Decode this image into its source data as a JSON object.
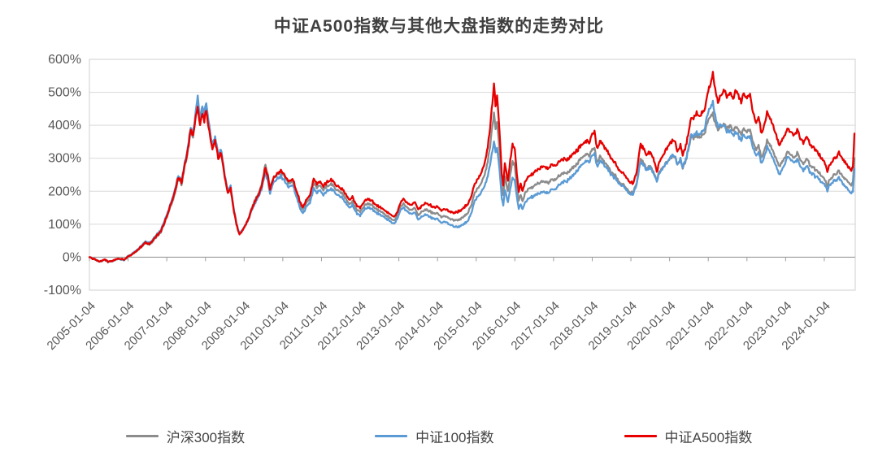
{
  "title": "中证A500指数与其他大盘指数的走势对比",
  "chart_data": {
    "type": "line",
    "title": "中证A500指数与其他大盘指数的走势对比",
    "xlabel": "",
    "ylabel": "",
    "unit": "%",
    "grid": true,
    "legend_position": "bottom",
    "y_axis": {
      "tick_labels": [
        "600%",
        "500%",
        "400%",
        "300%",
        "200%",
        "100%",
        "0%",
        "-100%"
      ],
      "tick_values": [
        600,
        500,
        400,
        300,
        200,
        100,
        0,
        -100
      ],
      "min": -100,
      "max": 600,
      "axis_cross_value": 0
    },
    "x_axis": {
      "tick_labels": [
        "2005-01-04",
        "2006-01-04",
        "2007-01-04",
        "2008-01-04",
        "2009-01-04",
        "2010-01-04",
        "2011-01-04",
        "2012-01-04",
        "2013-01-04",
        "2014-01-04",
        "2015-01-04",
        "2016-01-04",
        "2017-01-04",
        "2018-01-04",
        "2019-01-04",
        "2020-01-04",
        "2021-01-04",
        "2022-01-04",
        "2023-01-04",
        "2024-01-04"
      ],
      "tick_positions": [
        2005,
        2006,
        2007,
        2008,
        2009,
        2010,
        2011,
        2012,
        2013,
        2014,
        2015,
        2016,
        2017,
        2018,
        2019,
        2020,
        2021,
        2022,
        2023,
        2024
      ],
      "range": [
        2005.0,
        2024.8
      ]
    },
    "x": [
      2005.0,
      2005.1,
      2005.25,
      2005.4,
      2005.5,
      2005.6,
      2005.75,
      2005.9,
      2006.0,
      2006.15,
      2006.3,
      2006.45,
      2006.55,
      2006.7,
      2006.85,
      2006.95,
      2007.05,
      2007.15,
      2007.22,
      2007.3,
      2007.38,
      2007.45,
      2007.55,
      2007.62,
      2007.68,
      2007.75,
      2007.8,
      2007.86,
      2007.92,
      2007.97,
      2008.02,
      2008.1,
      2008.18,
      2008.25,
      2008.33,
      2008.4,
      2008.5,
      2008.58,
      2008.65,
      2008.72,
      2008.8,
      2008.88,
      2008.95,
      2009.05,
      2009.15,
      2009.25,
      2009.35,
      2009.45,
      2009.55,
      2009.62,
      2009.67,
      2009.75,
      2009.85,
      2009.95,
      2010.05,
      2010.15,
      2010.25,
      2010.35,
      2010.45,
      2010.52,
      2010.6,
      2010.7,
      2010.8,
      2010.88,
      2010.95,
      2011.05,
      2011.15,
      2011.25,
      2011.35,
      2011.45,
      2011.55,
      2011.65,
      2011.72,
      2011.8,
      2011.9,
      2012.0,
      2012.1,
      2012.2,
      2012.3,
      2012.4,
      2012.5,
      2012.6,
      2012.7,
      2012.8,
      2012.9,
      2012.97,
      2013.05,
      2013.12,
      2013.2,
      2013.3,
      2013.4,
      2013.5,
      2013.6,
      2013.7,
      2013.8,
      2013.9,
      2014.0,
      2014.1,
      2014.2,
      2014.3,
      2014.4,
      2014.5,
      2014.6,
      2014.7,
      2014.8,
      2014.88,
      2014.96,
      2015.04,
      2015.12,
      2015.2,
      2015.28,
      2015.36,
      2015.42,
      2015.46,
      2015.5,
      2015.54,
      2015.6,
      2015.66,
      2015.7,
      2015.74,
      2015.78,
      2015.82,
      2015.88,
      2015.94,
      2016.0,
      2016.05,
      2016.1,
      2016.15,
      2016.2,
      2016.28,
      2016.36,
      2016.45,
      2016.55,
      2016.65,
      2016.75,
      2016.85,
      2016.95,
      2017.05,
      2017.15,
      2017.25,
      2017.35,
      2017.45,
      2017.55,
      2017.65,
      2017.75,
      2017.85,
      2017.92,
      2018.0,
      2018.06,
      2018.12,
      2018.2,
      2018.3,
      2018.4,
      2018.5,
      2018.6,
      2018.7,
      2018.8,
      2018.9,
      2019.0,
      2019.06,
      2019.15,
      2019.25,
      2019.32,
      2019.4,
      2019.5,
      2019.58,
      2019.67,
      2019.75,
      2019.85,
      2019.95,
      2020.05,
      2020.13,
      2020.2,
      2020.28,
      2020.34,
      2020.42,
      2020.5,
      2020.56,
      2020.62,
      2020.7,
      2020.78,
      2020.85,
      2020.92,
      2021.0,
      2021.06,
      2021.12,
      2021.18,
      2021.25,
      2021.32,
      2021.4,
      2021.48,
      2021.56,
      2021.64,
      2021.7,
      2021.78,
      2021.85,
      2021.92,
      2022.0,
      2022.08,
      2022.16,
      2022.22,
      2022.3,
      2022.38,
      2022.46,
      2022.52,
      2022.6,
      2022.68,
      2022.76,
      2022.84,
      2022.9,
      2022.97,
      2023.06,
      2023.14,
      2023.22,
      2023.3,
      2023.38,
      2023.46,
      2023.54,
      2023.62,
      2023.7,
      2023.78,
      2023.86,
      2023.94,
      2024.02,
      2024.08,
      2024.14,
      2024.22,
      2024.3,
      2024.38,
      2024.46,
      2024.54,
      2024.62,
      2024.7,
      2024.74,
      2024.78
    ],
    "series": [
      {
        "name": "沪深300指数",
        "color": "#8c8c8c",
        "values": [
          0,
          -5,
          -13,
          -9,
          -15,
          -11,
          -6,
          -9,
          1,
          11,
          26,
          43,
          38,
          57,
          75,
          107,
          137,
          170,
          200,
          240,
          220,
          265,
          325,
          385,
          360,
          432,
          468,
          408,
          450,
          425,
          458,
          388,
          336,
          360,
          305,
          322,
          244,
          198,
          212,
          152,
          102,
          70,
          82,
          101,
          132,
          165,
          188,
          220,
          280,
          246,
          210,
          242,
          250,
          258,
          243,
          222,
          230,
          198,
          157,
          144,
          163,
          180,
          223,
          210,
          218,
          203,
          215,
          222,
          209,
          202,
          192,
          172,
          160,
          169,
          146,
          138,
          155,
          164,
          157,
          148,
          141,
          133,
          126,
          117,
          113,
          130,
          155,
          163,
          151,
          143,
          151,
          126,
          140,
          146,
          139,
          133,
          132,
          122,
          126,
          119,
          113,
          112,
          116,
          125,
          138,
          158,
          198,
          207,
          222,
          244,
          280,
          335,
          400,
          437,
          385,
          410,
          330,
          218,
          186,
          246,
          225,
          200,
          252,
          288,
          280,
          218,
          172,
          192,
          170,
          200,
          208,
          212,
          220,
          226,
          232,
          224,
          238,
          236,
          248,
          255,
          254,
          266,
          277,
          290,
          304,
          312,
          306,
          325,
          332,
          287,
          306,
          290,
          275,
          255,
          246,
          226,
          220,
          205,
          197,
          194,
          228,
          298,
          285,
          268,
          274,
          257,
          236,
          262,
          275,
          292,
          305,
          308,
          278,
          296,
          272,
          292,
          335,
          368,
          360,
          372,
          360,
          370,
          382,
          415,
          428,
          437,
          408,
          388,
          396,
          402,
          392,
          396,
          386,
          398,
          384,
          374,
          390,
          384,
          388,
          348,
          325,
          338,
          298,
          328,
          352,
          338,
          320,
          298,
          272,
          288,
          300,
          318,
          310,
          302,
          315,
          296,
          284,
          300,
          282,
          272,
          266,
          255,
          248,
          235,
          214,
          236,
          246,
          252,
          260,
          246,
          238,
          228,
          220,
          226,
          300
        ]
      },
      {
        "name": "中证100指数",
        "color": "#5b9bd5",
        "values": [
          0,
          -5,
          -12,
          -8,
          -14,
          -10,
          -5,
          -8,
          3,
          14,
          30,
          48,
          43,
          63,
          82,
          114,
          144,
          180,
          210,
          250,
          230,
          276,
          338,
          398,
          372,
          446,
          487,
          420,
          462,
          435,
          470,
          396,
          342,
          366,
          310,
          328,
          248,
          202,
          216,
          155,
          104,
          71,
          83,
          99,
          127,
          157,
          179,
          207,
          259,
          227,
          195,
          227,
          237,
          245,
          231,
          211,
          219,
          187,
          146,
          133,
          151,
          167,
          207,
          195,
          203,
          189,
          201,
          207,
          195,
          188,
          179,
          160,
          149,
          157,
          135,
          127,
          144,
          152,
          146,
          137,
          130,
          123,
          116,
          107,
          103,
          120,
          145,
          151,
          139,
          131,
          137,
          113,
          125,
          130,
          123,
          117,
          115,
          105,
          108,
          101,
          94,
          91,
          94,
          102,
          114,
          134,
          174,
          182,
          195,
          212,
          239,
          279,
          324,
          352,
          314,
          331,
          271,
          179,
          155,
          204,
          187,
          167,
          209,
          239,
          233,
          184,
          147,
          163,
          145,
          171,
          179,
          183,
          189,
          195,
          201,
          193,
          207,
          207,
          221,
          229,
          230,
          243,
          255,
          269,
          283,
          291,
          287,
          307,
          315,
          275,
          293,
          279,
          265,
          247,
          239,
          221,
          215,
          200,
          192,
          189,
          223,
          292,
          280,
          264,
          271,
          254,
          232,
          259,
          273,
          291,
          307,
          311,
          279,
          299,
          273,
          295,
          339,
          375,
          367,
          381,
          369,
          381,
          397,
          441,
          457,
          471,
          429,
          395,
          399,
          397,
          384,
          381,
          371,
          381,
          367,
          357,
          371,
          365,
          367,
          331,
          309,
          319,
          281,
          309,
          334,
          317,
          299,
          275,
          247,
          264,
          281,
          304,
          295,
          287,
          297,
          277,
          264,
          279,
          261,
          251,
          245,
          237,
          229,
          219,
          201,
          221,
          229,
          233,
          239,
          225,
          215,
          204,
          195,
          199,
          268
        ]
      },
      {
        "name": "中证A500指数",
        "color": "#e60000",
        "values": [
          0,
          -5,
          -12,
          -8,
          -14,
          -10,
          -4,
          -7,
          2,
          12,
          28,
          45,
          40,
          60,
          78,
          110,
          140,
          175,
          205,
          245,
          225,
          270,
          330,
          390,
          365,
          432,
          455,
          398,
          440,
          415,
          450,
          380,
          330,
          355,
          300,
          318,
          240,
          195,
          210,
          150,
          100,
          68,
          80,
          100,
          130,
          162,
          185,
          215,
          272,
          240,
          205,
          240,
          252,
          262,
          248,
          228,
          238,
          205,
          165,
          152,
          172,
          190,
          235,
          222,
          230,
          215,
          228,
          235,
          222,
          215,
          205,
          185,
          172,
          182,
          158,
          150,
          168,
          178,
          170,
          160,
          153,
          145,
          138,
          128,
          124,
          140,
          168,
          178,
          165,
          158,
          168,
          142,
          158,
          165,
          158,
          152,
          152,
          142,
          147,
          140,
          135,
          137,
          142,
          152,
          165,
          185,
          225,
          235,
          252,
          278,
          320,
          390,
          470,
          530,
          455,
          490,
          390,
          255,
          215,
          285,
          260,
          232,
          295,
          340,
          330,
          255,
          200,
          225,
          200,
          235,
          245,
          252,
          262,
          270,
          278,
          268,
          282,
          278,
          292,
          298,
          295,
          308,
          318,
          330,
          345,
          352,
          345,
          372,
          382,
          330,
          352,
          335,
          318,
          295,
          285,
          262,
          255,
          238,
          228,
          222,
          262,
          345,
          330,
          310,
          318,
          298,
          262,
          295,
          312,
          335,
          352,
          356,
          318,
          340,
          312,
          335,
          385,
          428,
          420,
          438,
          425,
          438,
          455,
          505,
          530,
          558,
          510,
          472,
          488,
          505,
          488,
          498,
          482,
          508,
          488,
          472,
          498,
          488,
          495,
          438,
          408,
          425,
          372,
          408,
          438,
          420,
          398,
          368,
          335,
          355,
          368,
          388,
          378,
          368,
          385,
          362,
          348,
          368,
          345,
          332,
          325,
          312,
          302,
          285,
          258,
          282,
          295,
          302,
          315,
          298,
          288,
          275,
          265,
          272,
          375
        ]
      }
    ]
  },
  "legend": {
    "items": [
      {
        "label": "沪深300指数"
      },
      {
        "label": "中证100指数"
      },
      {
        "label": "中证A500指数"
      }
    ]
  },
  "style": {
    "grid_color": "#d9d9d9",
    "border_color": "#cfcfcf",
    "axis_color": "#9e9e9e",
    "text_color": "#595959"
  }
}
